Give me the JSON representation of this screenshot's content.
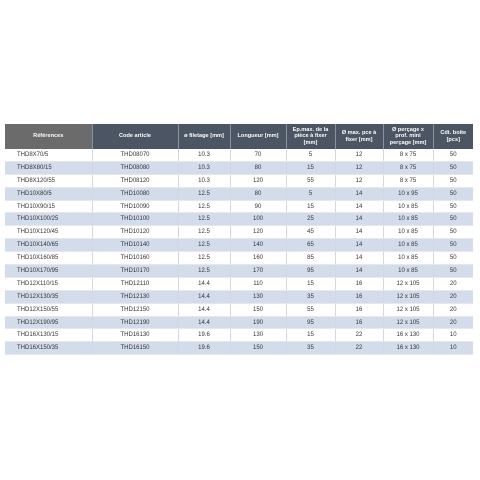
{
  "table": {
    "headers": [
      "Références",
      "Code article",
      "ø filetage [mm]",
      "Longueur [mm]",
      "Ep.max. de la pièce à fixer [mm]",
      "Ø max. pce à fixer [mm]",
      "Ø perçage x prof. mini perçage [mm]",
      "Cdt. boite [pcs]"
    ],
    "rows": [
      [
        "THD8X70/5",
        "THD08070",
        "10.3",
        "70",
        "5",
        "12",
        "8 x 75",
        "50"
      ],
      [
        "THD8X80/15",
        "THD08080",
        "10.3",
        "80",
        "15",
        "12",
        "8 x 75",
        "50"
      ],
      [
        "THD8X120/55",
        "THD08120",
        "10.3",
        "120",
        "55",
        "12",
        "8 x 75",
        "50"
      ],
      [
        "THD10X80/5",
        "THD10080",
        "12.5",
        "80",
        "5",
        "14",
        "10 x 95",
        "50"
      ],
      [
        "THD10X90/15",
        "THD10090",
        "12.5",
        "90",
        "15",
        "14",
        "10 x 85",
        "50"
      ],
      [
        "THD10X100/25",
        "THD10100",
        "12.5",
        "100",
        "25",
        "14",
        "10 x 85",
        "50"
      ],
      [
        "THD10X120/45",
        "THD10120",
        "12.5",
        "120",
        "45",
        "14",
        "10 x 85",
        "50"
      ],
      [
        "THD10X140/65",
        "THD10140",
        "12.5",
        "140",
        "65",
        "14",
        "10 x 85",
        "50"
      ],
      [
        "THD10X160/85",
        "THD10160",
        "12.5",
        "160",
        "85",
        "14",
        "10 x 85",
        "50"
      ],
      [
        "THD10X170/95",
        "THD10170",
        "12.5",
        "170",
        "95",
        "14",
        "10 x 85",
        "50"
      ],
      [
        "THD12X110/15",
        "THD12110",
        "14.4",
        "110",
        "15",
        "16",
        "12 x 105",
        "20"
      ],
      [
        "THD12X130/35",
        "THD12130",
        "14.4",
        "130",
        "35",
        "16",
        "12 x 105",
        "20"
      ],
      [
        "THD12X150/55",
        "THD12150",
        "14.4",
        "150",
        "55",
        "16",
        "12 x 105",
        "20"
      ],
      [
        "THD12X190/95",
        "THD12190",
        "14.4",
        "190",
        "95",
        "16",
        "12 x 105",
        "20"
      ],
      [
        "THD16X130/15",
        "THD16130",
        "19.6",
        "130",
        "15",
        "22",
        "16 x 130",
        "10"
      ],
      [
        "THD16X150/35",
        "THD16150",
        "19.6",
        "150",
        "35",
        "22",
        "16 x 130",
        "10"
      ]
    ]
  },
  "colors": {
    "header_bg": "#4b5563",
    "header_first_bg": "#6b6b6b",
    "row_alt_bg": "#d3dcea",
    "row_bg": "#ffffff"
  }
}
